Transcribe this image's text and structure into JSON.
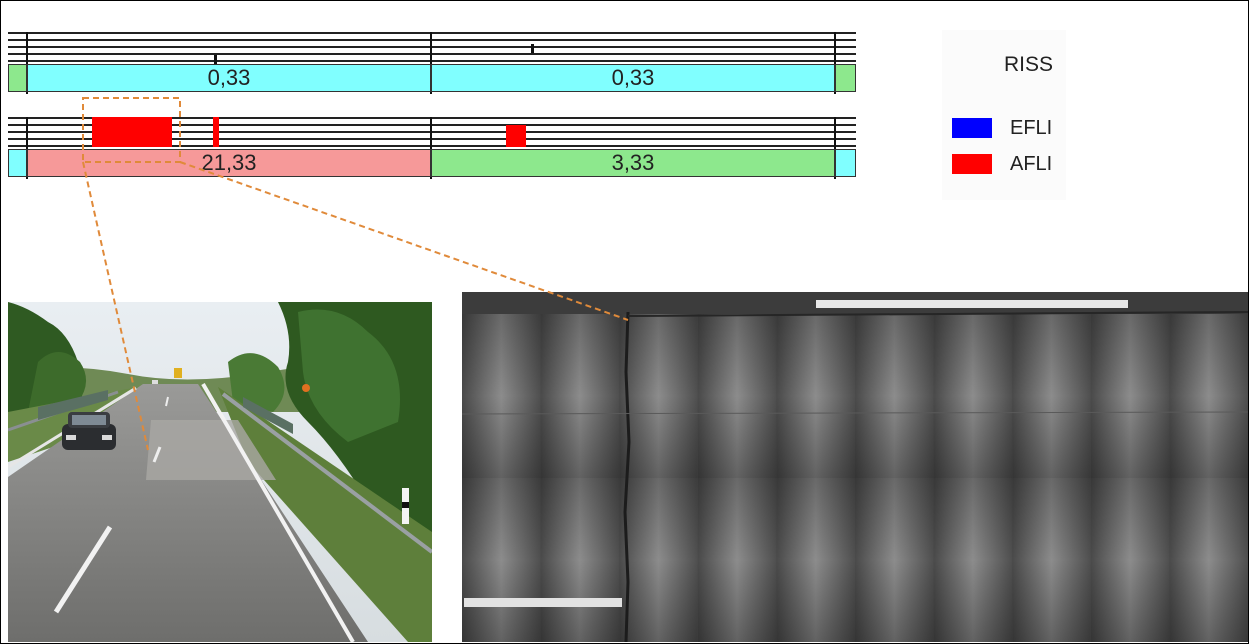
{
  "top_strip": {
    "segments": [
      {
        "value": "",
        "color": "#8de88d"
      },
      {
        "value": "0,33",
        "color": "#80ffff"
      },
      {
        "value": "0,33",
        "color": "#80ffff"
      },
      {
        "value": "",
        "color": "#8de88d"
      }
    ]
  },
  "bottom_strip": {
    "segments": [
      {
        "value": "",
        "color": "#80ffff"
      },
      {
        "value": "21,33",
        "color": "#f69999"
      },
      {
        "value": "3,33",
        "color": "#8de88d"
      },
      {
        "value": "",
        "color": "#80ffff"
      }
    ],
    "damage_color": "#ff0000"
  },
  "legend": {
    "title": "RISS",
    "items": [
      {
        "label": "EFLI",
        "color": "#0000ff"
      },
      {
        "label": "AFLI",
        "color": "#ff0000"
      }
    ]
  },
  "zoom_indicator_color": "#e08a3a",
  "images": {
    "road_photo": "road-photo",
    "scan": "pavement-scan"
  }
}
